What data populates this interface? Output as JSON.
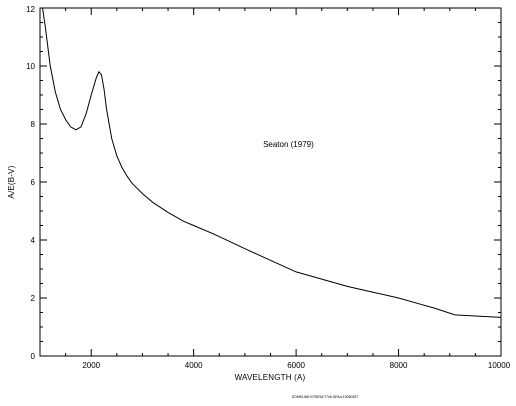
{
  "chart_data": {
    "type": "line",
    "title": "",
    "xlabel": "WAVELENGTH (A)",
    "ylabel": "A/E(B-V)",
    "xlim": [
      1000,
      10000
    ],
    "ylim": [
      0,
      12
    ],
    "x_tick_labels": [
      "2000",
      "4000",
      "6000",
      "8000",
      "10000"
    ],
    "y_tick_labels": [
      "0",
      "2",
      "4",
      "6",
      "8",
      "10",
      "12"
    ],
    "x_ticks": [
      2000,
      4000,
      6000,
      8000,
      10000
    ],
    "y_ticks": [
      0,
      2,
      4,
      6,
      8,
      10,
      12
    ],
    "annotation": {
      "text": "Seaton (1979)",
      "x": 5850,
      "y": 7.2
    },
    "footer_note": "SOMELINE/XTBPACT/V6 DFAa-15060257",
    "grid": false,
    "line_color": "#000000",
    "series": [
      {
        "name": "",
        "x": [
          1050,
          1100,
          1150,
          1200,
          1300,
          1400,
          1500,
          1600,
          1700,
          1800,
          1900,
          2000,
          2100,
          2150,
          2200,
          2250,
          2300,
          2400,
          2500,
          2600,
          2700,
          2800,
          3000,
          3200,
          3500,
          3800,
          4000,
          4400,
          5000,
          5500,
          6000,
          6500,
          7000,
          7500,
          8000,
          8400,
          8700,
          9100,
          9500,
          10000
        ],
        "y": [
          12.0,
          11.4,
          10.7,
          10.0,
          9.1,
          8.5,
          8.15,
          7.9,
          7.8,
          7.9,
          8.35,
          9.0,
          9.6,
          9.8,
          9.7,
          9.2,
          8.5,
          7.5,
          6.9,
          6.5,
          6.2,
          5.95,
          5.6,
          5.3,
          4.95,
          4.65,
          4.5,
          4.2,
          3.7,
          3.3,
          2.9,
          2.65,
          2.4,
          2.2,
          2.0,
          1.8,
          1.65,
          1.42,
          1.38,
          1.33
        ]
      }
    ]
  }
}
